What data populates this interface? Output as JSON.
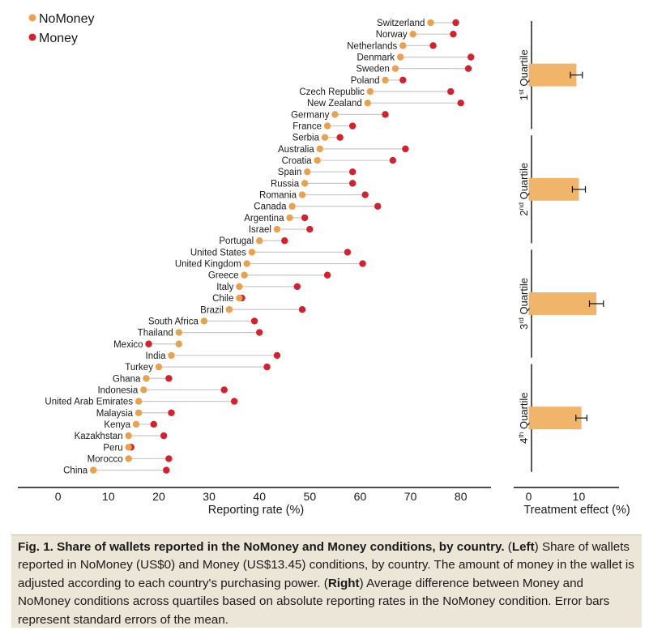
{
  "legend": {
    "nomoney_label": "NoMoney",
    "money_label": "Money",
    "nomoney_color": "#e8a24f",
    "money_color": "#d3222d"
  },
  "chart_data": [
    {
      "type": "dumbbell",
      "xlabel": "Reporting rate (%)",
      "xlim": [
        -8,
        86
      ],
      "xticks": [
        0,
        10,
        20,
        30,
        40,
        50,
        60,
        70,
        80
      ],
      "categories": [
        "Switzerland",
        "Norway",
        "Netherlands",
        "Denmark",
        "Sweden",
        "Poland",
        "Czech Republic",
        "New Zealand",
        "Germany",
        "France",
        "Serbia",
        "Australia",
        "Croatia",
        "Spain",
        "Russia",
        "Romania",
        "Canada",
        "Argentina",
        "Israel",
        "Portugal",
        "United States",
        "United Kingdom",
        "Greece",
        "Italy",
        "Chile",
        "Brazil",
        "South Africa",
        "Thailand",
        "Mexico",
        "India",
        "Turkey",
        "Ghana",
        "Indonesia",
        "United Arab Emirates",
        "Malaysia",
        "Kenya",
        "Kazakhstan",
        "Peru",
        "Morocco",
        "China"
      ],
      "series": [
        {
          "name": "NoMoney",
          "values": [
            74,
            70.5,
            68.5,
            68,
            67,
            65,
            62,
            61.5,
            55,
            53.5,
            53,
            52,
            51.5,
            49.5,
            49,
            48.5,
            46.5,
            46,
            43.5,
            40,
            38.5,
            37.5,
            37,
            36,
            36,
            34,
            29,
            24,
            24,
            22.5,
            20,
            17.5,
            17,
            16,
            16,
            15.5,
            14,
            14,
            14,
            7
          ]
        },
        {
          "name": "Money",
          "values": [
            79,
            78.5,
            74.5,
            82,
            81.5,
            68.5,
            78,
            80,
            65,
            58.5,
            56,
            69,
            66.5,
            58.5,
            58.5,
            61,
            63.5,
            49,
            50,
            45,
            57.5,
            60.5,
            53.5,
            47.5,
            36.5,
            48.5,
            39,
            40,
            18,
            43.5,
            41.5,
            22,
            33,
            35,
            22.5,
            19,
            21,
            14.5,
            22,
            21.5
          ]
        }
      ]
    },
    {
      "type": "bar",
      "orientation": "horizontal",
      "xlabel": "Treatment effect (%)",
      "xlim": [
        -3,
        18
      ],
      "xticks": [
        0,
        10
      ],
      "categories": [
        "1st Quartile",
        "2nd Quartile",
        "3rd Quartile",
        "4th Quartile"
      ],
      "values": [
        9.5,
        10,
        13.5,
        10.5
      ],
      "errors": [
        1.2,
        1.3,
        1.4,
        1.1
      ],
      "bar_color": "#f0b46b"
    }
  ],
  "quartiles": [
    {
      "ordinal": "1",
      "suffix": "st",
      "word": "Quartile"
    },
    {
      "ordinal": "2",
      "suffix": "nd",
      "word": "Quartile"
    },
    {
      "ordinal": "3",
      "suffix": "rd",
      "word": "Quartile"
    },
    {
      "ordinal": "4",
      "suffix": "th",
      "word": "Quartile"
    }
  ],
  "caption": {
    "fig_label": "Fig. 1. Share of wallets reported in the NoMoney and Money conditions, by country.",
    "left_open": " (",
    "left_word": "Left",
    "left_text": ") Share of wallets reported in NoMoney (US$0) and Money (US$13.45) conditions, by country. The amount of money in the wallet is adjusted according to each country's purchasing power. (",
    "right_word": "Right",
    "right_text": ") Average difference between Money and NoMoney conditions across quartiles based on absolute reporting rates in the NoMoney condition. Error bars represent standard errors of the mean."
  }
}
